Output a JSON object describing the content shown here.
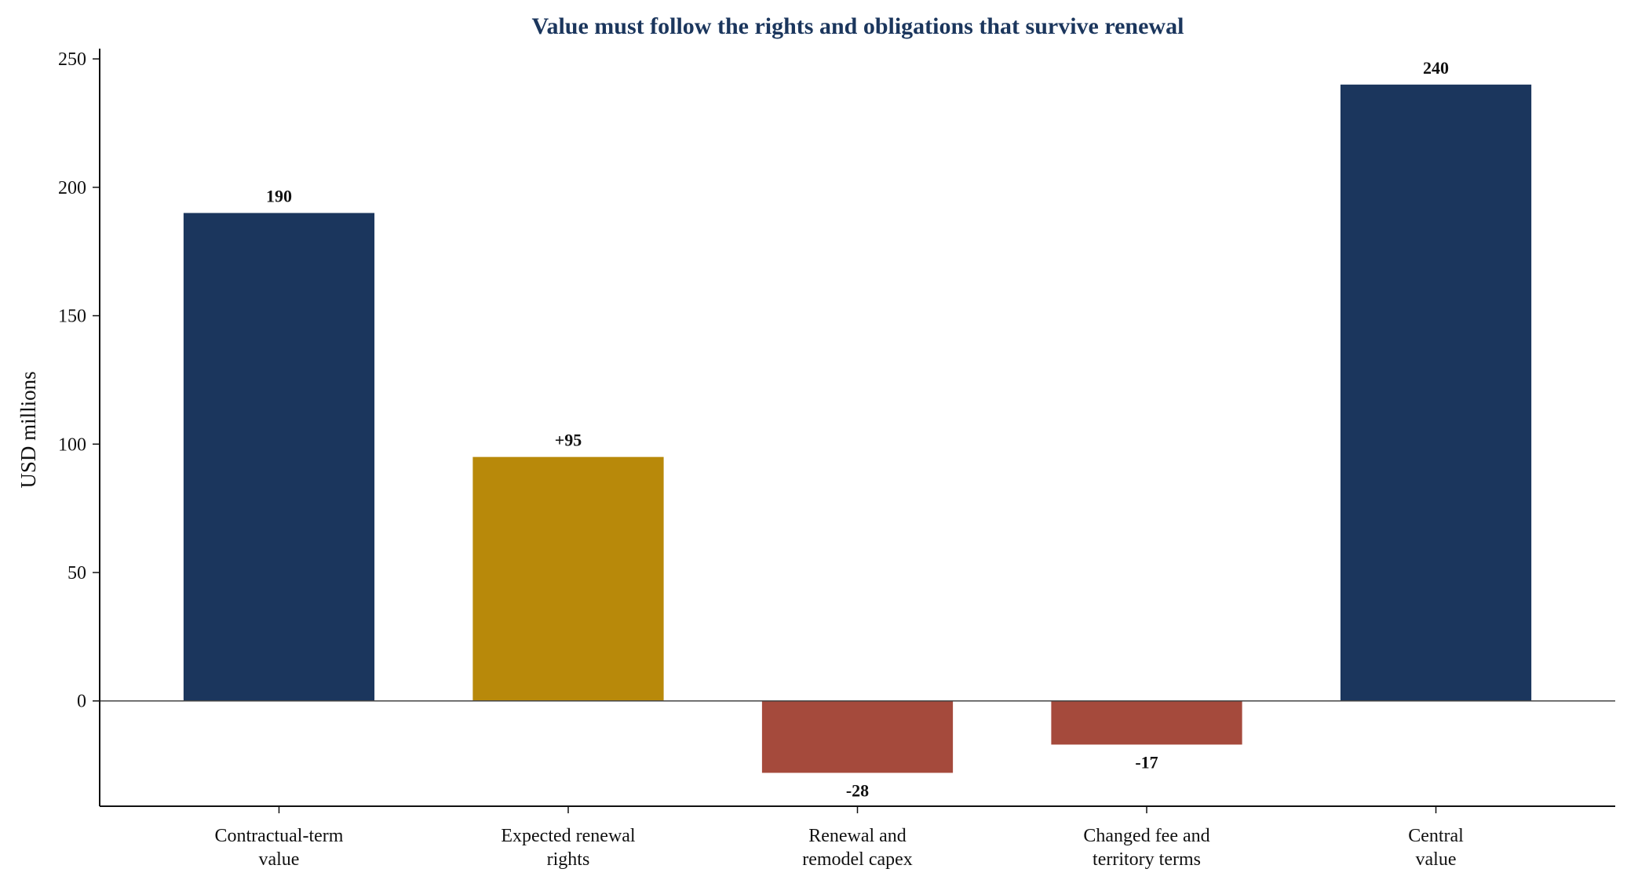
{
  "colors": {
    "anchor": "#1b365d",
    "increase": "#b8890a",
    "decrease": "#a54a3c",
    "title": "#1b365d",
    "axis": "#111111"
  },
  "chart_data": {
    "type": "bar",
    "title": "Value must follow the rights and obligations that survive renewal",
    "xlabel": "",
    "ylabel": "USD millions",
    "ylim": [
      -41,
      254
    ],
    "yticks": [
      0,
      50,
      100,
      150,
      200,
      250
    ],
    "categories": [
      [
        "Contractual-term",
        "value"
      ],
      [
        "Expected renewal",
        "rights"
      ],
      [
        "Renewal and",
        "remodel capex"
      ],
      [
        "Changed fee and",
        "territory terms"
      ],
      [
        "Central",
        "value"
      ]
    ],
    "values": [
      190,
      95,
      -28,
      -17,
      240
    ],
    "kinds": [
      "anchor",
      "increase",
      "decrease",
      "decrease",
      "anchor"
    ],
    "data_labels": [
      "190",
      "+95",
      "-28",
      "-17",
      "240"
    ],
    "grid": false,
    "legend": "none"
  }
}
